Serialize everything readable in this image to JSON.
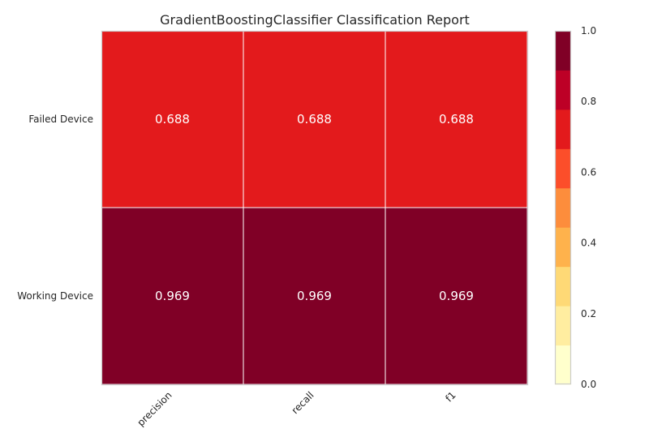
{
  "chart_data": {
    "type": "heatmap",
    "title": "GradientBoostingClassifier Classification Report",
    "rows": [
      "Failed Device",
      "Working Device"
    ],
    "columns": [
      "precision",
      "recall",
      "f1"
    ],
    "values": [
      [
        0.688,
        0.688,
        0.688
      ],
      [
        0.969,
        0.969,
        0.969
      ]
    ],
    "value_labels": [
      [
        "0.688",
        "0.688",
        "0.688"
      ],
      [
        "0.969",
        "0.969",
        "0.969"
      ]
    ],
    "colorbar": {
      "range": [
        0.0,
        1.0
      ],
      "ticks": [
        "0.0",
        "0.2",
        "0.4",
        "0.6",
        "0.8",
        "1.0"
      ],
      "colors": [
        "#ffffcc",
        "#ffeda0",
        "#fed976",
        "#feb24c",
        "#fd8d3c",
        "#fc4e2a",
        "#e31a1c",
        "#bd0026",
        "#800026"
      ]
    },
    "cell_text_color": "#ffffff",
    "grid": false
  }
}
